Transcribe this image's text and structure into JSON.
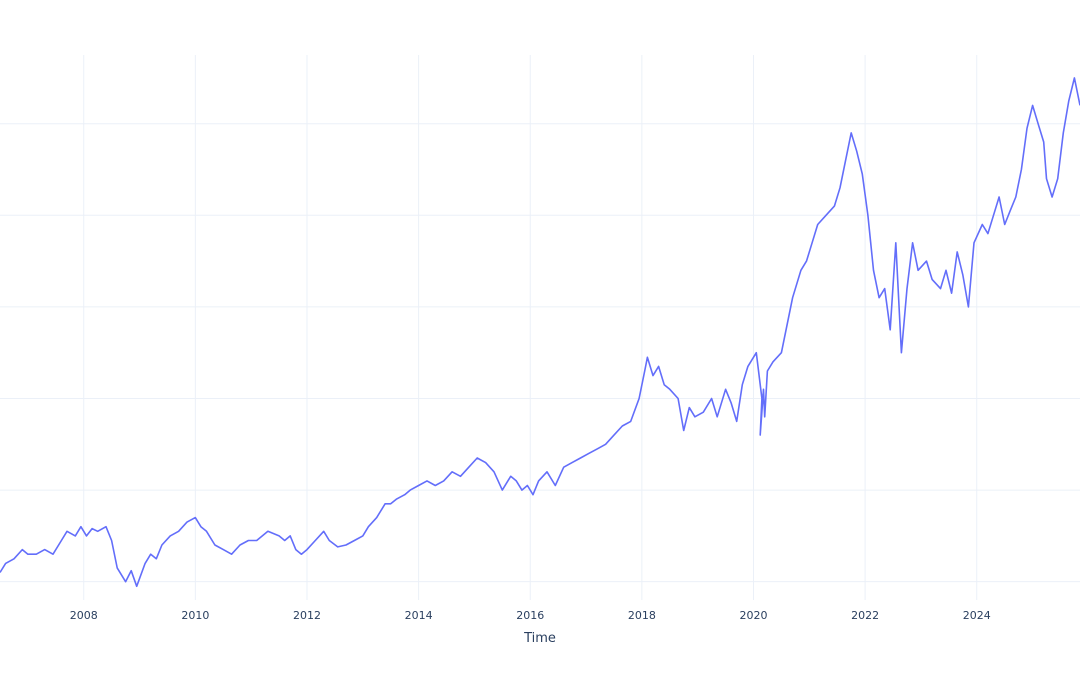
{
  "chart_data": {
    "type": "line",
    "title": "",
    "xlabel": "Time",
    "ylabel": "",
    "xlim": [
      2006.5,
      2025.85
    ],
    "ylim": [
      0.8,
      6.75
    ],
    "grid": true,
    "legend": "none",
    "x_ticks": [
      2008,
      2010,
      2012,
      2014,
      2016,
      2018,
      2020,
      2022,
      2024
    ],
    "x_tick_labels": [
      "2008",
      "2010",
      "2012",
      "2014",
      "2016",
      "2018",
      "2020",
      "2022",
      "2024"
    ],
    "y_ticks": [
      1,
      2,
      3,
      4,
      5,
      6
    ],
    "colors": {
      "line": "#636efa",
      "grid": "#ebf0f8",
      "text": "#2a3f5f"
    },
    "series": [
      {
        "x": [
          2006.5,
          2006.6,
          2006.75,
          2006.9,
          2007.0,
          2007.15,
          2007.3,
          2007.45,
          2007.6,
          2007.7,
          2007.85,
          2007.95,
          2008.05,
          2008.15,
          2008.25,
          2008.4,
          2008.5,
          2008.6,
          2008.75,
          2008.85,
          2008.95,
          2009.1,
          2009.2,
          2009.3,
          2009.4,
          2009.55,
          2009.7,
          2009.85,
          2010.0,
          2010.1,
          2010.2,
          2010.35,
          2010.5,
          2010.65,
          2010.8,
          2010.95,
          2011.1,
          2011.3,
          2011.5,
          2011.6,
          2011.7,
          2011.8,
          2011.9,
          2012.0,
          2012.15,
          2012.3,
          2012.4,
          2012.55,
          2012.7,
          2012.85,
          2013.0,
          2013.1,
          2013.25,
          2013.4,
          2013.5,
          2013.6,
          2013.75,
          2013.85,
          2014.0,
          2014.15,
          2014.3,
          2014.45,
          2014.6,
          2014.75,
          2014.9,
          2015.05,
          2015.2,
          2015.35,
          2015.5,
          2015.65,
          2015.75,
          2015.85,
          2015.95,
          2016.05,
          2016.15,
          2016.3,
          2016.45,
          2016.6,
          2016.75,
          2016.9,
          2017.05,
          2017.2,
          2017.35,
          2017.5,
          2017.65,
          2017.8,
          2017.95,
          2018.05,
          2018.1,
          2018.2,
          2018.3,
          2018.4,
          2018.5,
          2018.65,
          2018.75,
          2018.85,
          2018.95,
          2019.1,
          2019.25,
          2019.35,
          2019.5,
          2019.6,
          2019.7,
          2019.8,
          2019.9,
          2020.05,
          2020.15,
          2020.12,
          2020.18,
          2020.2,
          2020.25,
          2020.35,
          2020.5,
          2020.6,
          2020.7,
          2020.85,
          2020.95,
          2021.05,
          2021.15,
          2021.3,
          2021.45,
          2021.55,
          2021.65,
          2021.75,
          2021.85,
          2021.95,
          2022.05,
          2022.15,
          2022.25,
          2022.35,
          2022.45,
          2022.55,
          2022.65,
          2022.75,
          2022.85,
          2022.95,
          2023.1,
          2023.2,
          2023.35,
          2023.45,
          2023.55,
          2023.65,
          2023.75,
          2023.85,
          2023.95,
          2024.1,
          2024.2,
          2024.3,
          2024.4,
          2024.5,
          2024.6,
          2024.7,
          2024.8,
          2024.9,
          2025.0,
          2025.1,
          2025.2,
          2025.25,
          2025.35,
          2025.45,
          2025.55,
          2025.65,
          2025.75,
          2025.85
        ],
        "y": [
          1.1,
          1.2,
          1.25,
          1.35,
          1.3,
          1.3,
          1.35,
          1.3,
          1.45,
          1.55,
          1.5,
          1.6,
          1.5,
          1.58,
          1.55,
          1.6,
          1.45,
          1.15,
          1.0,
          1.12,
          0.95,
          1.2,
          1.3,
          1.25,
          1.4,
          1.5,
          1.55,
          1.65,
          1.7,
          1.6,
          1.55,
          1.4,
          1.35,
          1.3,
          1.4,
          1.45,
          1.45,
          1.55,
          1.5,
          1.45,
          1.5,
          1.35,
          1.3,
          1.35,
          1.45,
          1.55,
          1.45,
          1.38,
          1.4,
          1.45,
          1.5,
          1.6,
          1.7,
          1.85,
          1.85,
          1.9,
          1.95,
          2.0,
          2.05,
          2.1,
          2.05,
          2.1,
          2.2,
          2.15,
          2.25,
          2.35,
          2.3,
          2.2,
          2.0,
          2.15,
          2.1,
          2.0,
          2.05,
          1.95,
          2.1,
          2.2,
          2.05,
          2.25,
          2.3,
          2.35,
          2.4,
          2.45,
          2.5,
          2.6,
          2.7,
          2.75,
          3.0,
          3.3,
          3.45,
          3.25,
          3.35,
          3.15,
          3.1,
          3.0,
          2.65,
          2.9,
          2.8,
          2.85,
          3.0,
          2.8,
          3.1,
          2.95,
          2.75,
          3.15,
          3.35,
          3.5,
          3.0,
          2.6,
          3.1,
          2.8,
          3.3,
          3.4,
          3.5,
          3.8,
          4.1,
          4.4,
          4.5,
          4.7,
          4.9,
          5.0,
          5.1,
          5.3,
          5.6,
          5.9,
          5.7,
          5.45,
          5.0,
          4.4,
          4.1,
          4.2,
          3.75,
          4.7,
          3.5,
          4.2,
          4.7,
          4.4,
          4.5,
          4.3,
          4.2,
          4.4,
          4.15,
          4.6,
          4.35,
          4.0,
          4.7,
          4.9,
          4.8,
          5.0,
          5.2,
          4.9,
          5.05,
          5.2,
          5.5,
          5.95,
          6.2,
          6.0,
          5.8,
          5.4,
          5.2,
          5.4,
          5.9,
          6.25,
          6.5,
          6.2
        ]
      }
    ]
  }
}
